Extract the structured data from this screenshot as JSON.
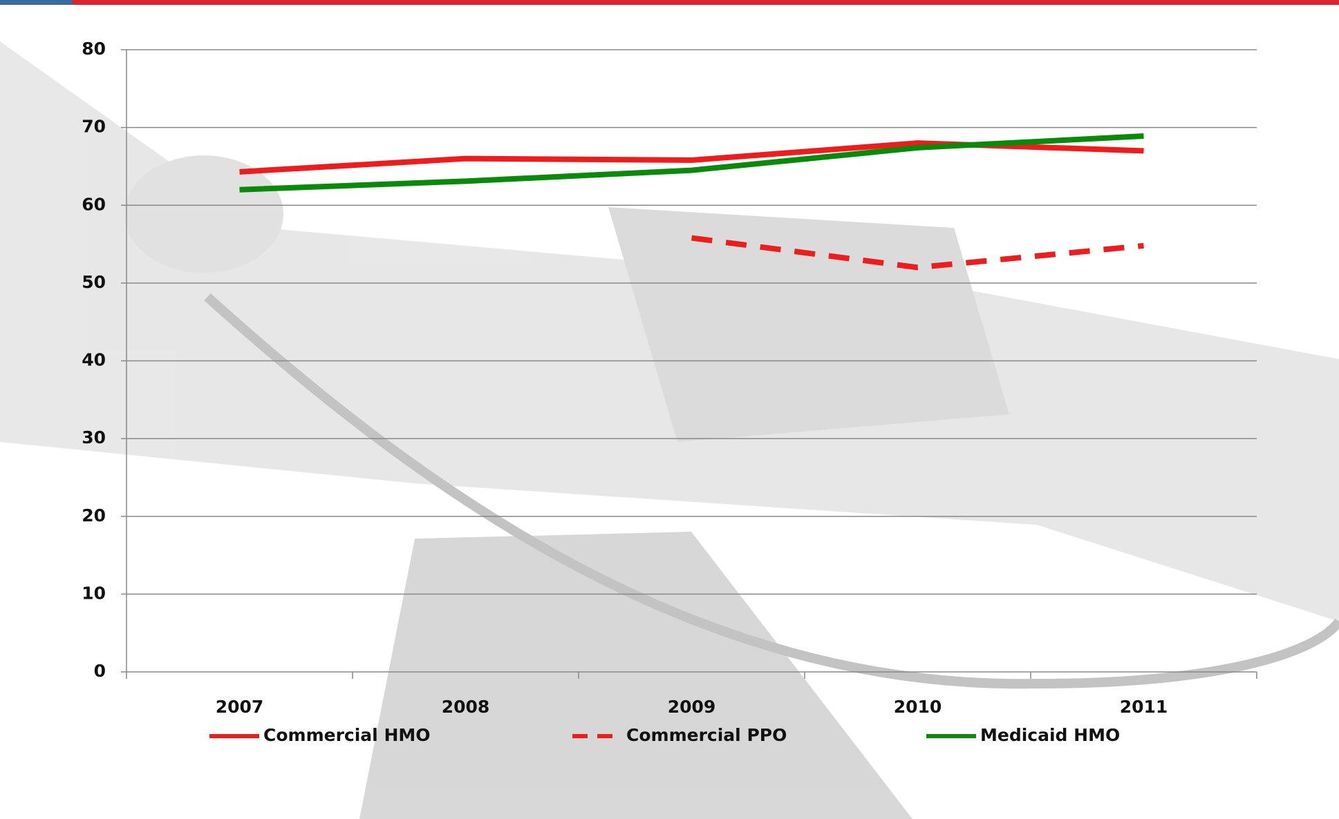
{
  "chart_data": {
    "type": "line",
    "categories": [
      "2007",
      "2008",
      "2009",
      "2010",
      "2011"
    ],
    "series": [
      {
        "name": "Commercial HMO",
        "color": "#ee1c1c",
        "dashed": false,
        "values": [
          64.3,
          66,
          65.8,
          68,
          67
        ]
      },
      {
        "name": "Commercial PPO",
        "color": "#ee1c1c",
        "dashed": true,
        "values": [
          null,
          null,
          55.8,
          52,
          54.8
        ]
      },
      {
        "name": "Medicaid HMO",
        "color": "#0a8a0a",
        "dashed": false,
        "values": [
          62,
          63.1,
          64.5,
          67.4,
          68.9
        ]
      }
    ],
    "ylim": [
      0,
      80
    ],
    "yticks": [
      0,
      10,
      20,
      30,
      40,
      50,
      60,
      70,
      80
    ],
    "grid": true,
    "legend": "bottom"
  }
}
